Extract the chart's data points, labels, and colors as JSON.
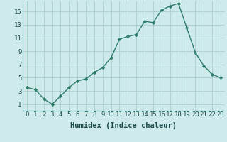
{
  "x": [
    0,
    1,
    2,
    3,
    4,
    5,
    6,
    7,
    8,
    9,
    10,
    11,
    12,
    13,
    14,
    15,
    16,
    17,
    18,
    19,
    20,
    21,
    22,
    23
  ],
  "y": [
    3.5,
    3.2,
    1.8,
    1.0,
    2.2,
    3.5,
    4.5,
    4.8,
    5.8,
    6.5,
    8.0,
    10.8,
    11.2,
    11.5,
    13.5,
    13.3,
    15.2,
    15.8,
    16.2,
    12.5,
    8.8,
    6.8,
    5.5,
    5.0
  ],
  "line_color": "#2e7d6b",
  "marker": "D",
  "marker_size": 2.2,
  "bg_color": "#ceeaea",
  "grid_color": "#aacfcf",
  "xlabel": "Humidex (Indice chaleur)",
  "xlim": [
    -0.5,
    23.5
  ],
  "ylim": [
    0,
    16.5
  ],
  "yticks": [
    1,
    3,
    5,
    7,
    9,
    11,
    13,
    15
  ],
  "xticks": [
    0,
    1,
    2,
    3,
    4,
    5,
    6,
    7,
    8,
    9,
    10,
    11,
    12,
    13,
    14,
    15,
    16,
    17,
    18,
    19,
    20,
    21,
    22,
    23
  ],
  "xlabel_fontsize": 7.5,
  "tick_fontsize": 6.5,
  "line_width": 1.0,
  "spine_color": "#5a9a9a",
  "tick_color": "#1a4a4a"
}
